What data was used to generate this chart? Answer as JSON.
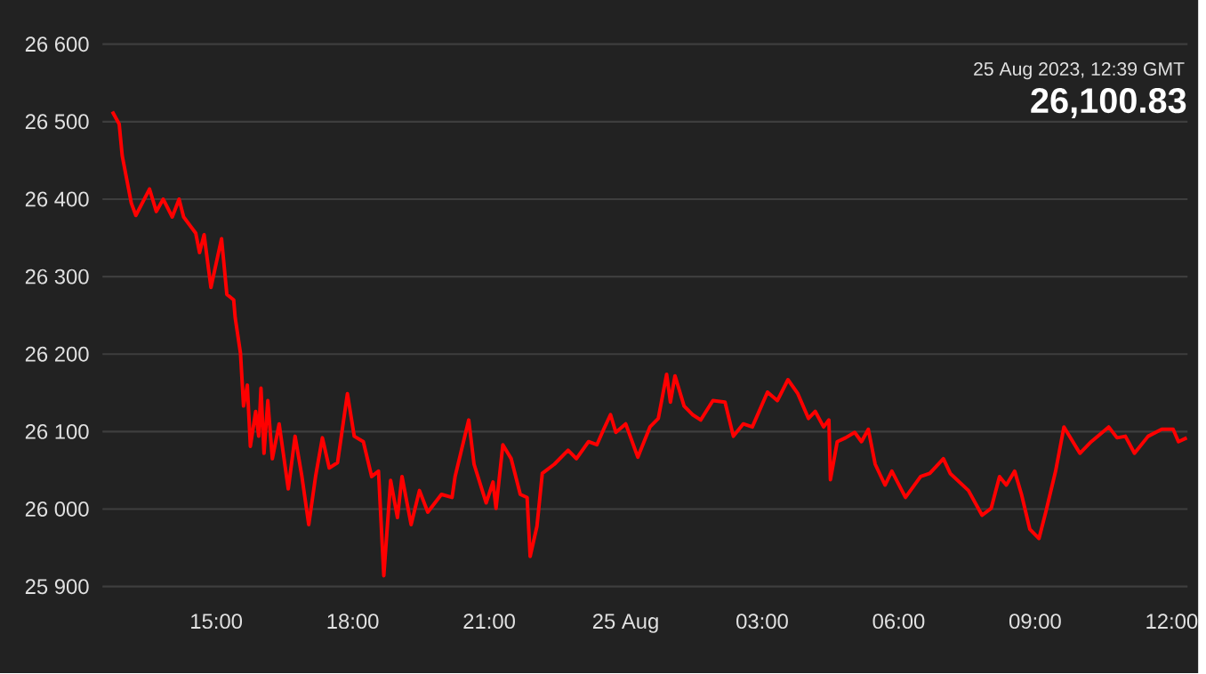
{
  "chart_data": {
    "type": "line",
    "x": [
      "2023-08-24T12:43",
      "2023-08-24T12:52",
      "2023-08-24T12:56",
      "2023-08-24T13:08",
      "2023-08-24T13:14",
      "2023-08-24T13:32",
      "2023-08-24T13:41",
      "2023-08-24T13:50",
      "2023-08-24T14:02",
      "2023-08-24T14:11",
      "2023-08-24T14:17",
      "2023-08-24T14:33",
      "2023-08-24T14:38",
      "2023-08-24T14:44",
      "2023-08-24T14:53",
      "2023-08-24T15:07",
      "2023-08-24T15:14",
      "2023-08-24T15:23",
      "2023-08-24T15:25",
      "2023-08-24T15:32",
      "2023-08-24T15:36",
      "2023-08-24T15:41",
      "2023-08-24T15:45",
      "2023-08-24T15:52",
      "2023-08-24T15:56",
      "2023-08-24T15:59",
      "2023-08-24T16:03",
      "2023-08-24T16:08",
      "2023-08-24T16:14",
      "2023-08-24T16:23",
      "2023-08-24T16:35",
      "2023-08-24T16:44",
      "2023-08-24T16:53",
      "2023-08-24T17:02",
      "2023-08-24T17:11",
      "2023-08-24T17:20",
      "2023-08-24T17:29",
      "2023-08-24T17:40",
      "2023-08-24T17:53",
      "2023-08-24T18:02",
      "2023-08-24T18:14",
      "2023-08-24T18:25",
      "2023-08-24T18:34",
      "2023-08-24T18:41",
      "2023-08-24T18:50",
      "2023-08-24T18:59",
      "2023-08-24T19:05",
      "2023-08-24T19:17",
      "2023-08-24T19:28",
      "2023-08-24T19:39",
      "2023-08-24T19:57",
      "2023-08-24T20:11",
      "2023-08-24T20:15",
      "2023-08-24T20:33",
      "2023-08-24T20:40",
      "2023-08-24T20:56",
      "2023-08-24T21:05",
      "2023-08-24T21:09",
      "2023-08-24T21:18",
      "2023-08-24T21:29",
      "2023-08-24T21:41",
      "2023-08-24T21:50",
      "2023-08-24T21:54",
      "2023-08-24T22:03",
      "2023-08-24T22:10",
      "2023-08-24T22:26",
      "2023-08-24T22:44",
      "2023-08-24T22:55",
      "2023-08-24T23:11",
      "2023-08-24T23:22",
      "2023-08-24T23:31",
      "2023-08-24T23:40",
      "2023-08-24T23:47",
      "2023-08-25T00:00",
      "2023-08-25T00:16",
      "2023-08-25T00:32",
      "2023-08-25T00:43",
      "2023-08-25T00:54",
      "2023-08-25T00:59",
      "2023-08-25T01:05",
      "2023-08-25T01:17",
      "2023-08-25T01:28",
      "2023-08-25T01:39",
      "2023-08-25T01:55",
      "2023-08-25T02:11",
      "2023-08-25T02:22",
      "2023-08-25T02:35",
      "2023-08-25T02:47",
      "2023-08-25T03:07",
      "2023-08-25T03:20",
      "2023-08-25T03:34",
      "2023-08-25T03:47",
      "2023-08-25T04:01",
      "2023-08-25T04:10",
      "2023-08-25T04:21",
      "2023-08-25T04:28",
      "2023-08-25T04:30",
      "2023-08-25T04:39",
      "2023-08-25T04:50",
      "2023-08-25T05:02",
      "2023-08-25T05:11",
      "2023-08-25T05:20",
      "2023-08-25T05:29",
      "2023-08-25T05:42",
      "2023-08-25T05:51",
      "2023-08-25T06:09",
      "2023-08-25T06:29",
      "2023-08-25T06:41",
      "2023-08-25T06:59",
      "2023-08-25T07:08",
      "2023-08-25T07:32",
      "2023-08-25T07:50",
      "2023-08-25T08:02",
      "2023-08-25T08:13",
      "2023-08-25T08:22",
      "2023-08-25T08:33",
      "2023-08-25T08:42",
      "2023-08-25T08:53",
      "2023-08-25T09:05",
      "2023-08-25T09:14",
      "2023-08-25T09:27",
      "2023-08-25T09:38",
      "2023-08-25T09:59",
      "2023-08-25T10:14",
      "2023-08-25T10:37",
      "2023-08-25T10:48",
      "2023-08-25T10:59",
      "2023-08-25T11:11",
      "2023-08-25T11:29",
      "2023-08-25T11:47",
      "2023-08-25T12:02",
      "2023-08-25T12:09",
      "2023-08-25T12:20"
    ],
    "values": [
      26513,
      26497,
      26456,
      26395,
      26379,
      26413,
      26384,
      26400,
      26377,
      26400,
      26377,
      26356,
      26331,
      26354,
      26286,
      26349,
      26277,
      26270,
      26247,
      26201,
      26133,
      26160,
      26081,
      26126,
      26094,
      26156,
      26072,
      26140,
      26065,
      26110,
      26026,
      26094,
      26042,
      25980,
      26042,
      26092,
      26053,
      26060,
      26149,
      26094,
      26087,
      26042,
      26049,
      25914,
      26037,
      25989,
      26042,
      25980,
      26024,
      25996,
      26019,
      26015,
      26042,
      26115,
      26058,
      26008,
      26035,
      26001,
      26083,
      26065,
      26019,
      26015,
      25939,
      25978,
      26046,
      26058,
      26076,
      26065,
      26087,
      26083,
      26103,
      26122,
      26099,
      26110,
      26067,
      26106,
      26117,
      26174,
      26138,
      26172,
      26133,
      26122,
      26115,
      26140,
      26138,
      26094,
      26110,
      26106,
      26151,
      26140,
      26167,
      26149,
      26117,
      26126,
      26106,
      26115,
      26038,
      26087,
      26092,
      26099,
      26087,
      26103,
      26058,
      26031,
      26049,
      26015,
      26042,
      26046,
      26065,
      26046,
      26024,
      25992,
      26001,
      26042,
      26031,
      26049,
      26019,
      25974,
      25962,
      25996,
      26049,
      26106,
      26072,
      26087,
      26106,
      26092,
      26094,
      26072,
      26094,
      26103,
      26103,
      26087,
      26092
    ],
    "color": "#ff0000",
    "xlim": [
      "2023-08-24T12:30",
      "2023-08-25T12:21"
    ],
    "ylim": [
      25900,
      26600
    ],
    "xticks": [
      {
        "value": "2023-08-24T15:00",
        "label": "15:00"
      },
      {
        "value": "2023-08-24T18:00",
        "label": "18:00"
      },
      {
        "value": "2023-08-24T21:00",
        "label": "21:00"
      },
      {
        "value": "2023-08-25T00:00",
        "label": "25 Aug"
      },
      {
        "value": "2023-08-25T03:00",
        "label": "03:00"
      },
      {
        "value": "2023-08-25T06:00",
        "label": "06:00"
      },
      {
        "value": "2023-08-25T09:00",
        "label": "09:00"
      },
      {
        "value": "2023-08-25T12:00",
        "label": "12:00"
      }
    ],
    "yticks": [
      {
        "value": 25900,
        "label": "25 900"
      },
      {
        "value": 26000,
        "label": "26 000"
      },
      {
        "value": 26100,
        "label": "26 100"
      },
      {
        "value": 26200,
        "label": "26 200"
      },
      {
        "value": 26300,
        "label": "26 300"
      },
      {
        "value": 26400,
        "label": "26 400"
      },
      {
        "value": 26500,
        "label": "26 500"
      },
      {
        "value": 26600,
        "label": "26 600"
      }
    ],
    "grid": "y",
    "annotations": [
      "25 Aug 2023, 12:39 GMT",
      "26,100.83"
    ]
  }
}
